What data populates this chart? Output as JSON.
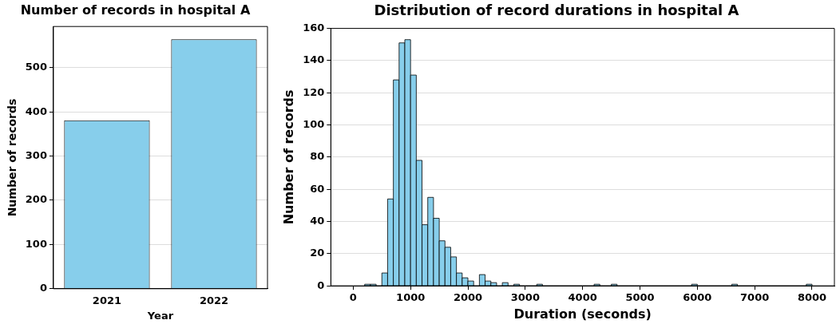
{
  "chart_data": [
    {
      "type": "bar",
      "title": "Number of records in hospital A",
      "xlabel": "Year",
      "ylabel": "Number of records",
      "categories": [
        "2021",
        "2022"
      ],
      "values": [
        381,
        564
      ],
      "color": "#87ceeb",
      "ylim": [
        0,
        593
      ],
      "yticks": [
        0,
        100,
        200,
        300,
        400,
        500
      ],
      "grid": "y",
      "legend": false
    },
    {
      "type": "histogram",
      "title": "Distribution of record durations in hospital A",
      "xlabel": "Duration (seconds)",
      "ylabel": "Number of records",
      "bins": [
        200,
        300,
        400,
        500,
        600,
        700,
        800,
        900,
        1000,
        1100,
        1200,
        1300,
        1400,
        1500,
        1600,
        1700,
        1800,
        1900,
        2000,
        2100,
        2200,
        2300,
        2400,
        2500,
        2600,
        2700,
        2800,
        2900,
        3000,
        3100,
        3200,
        3300,
        3400,
        3500,
        3600,
        3700,
        3800,
        3900,
        4000,
        4100,
        4200,
        4300,
        4400,
        4500,
        4600,
        4700,
        4800,
        4900,
        5000,
        5100,
        5200,
        5300,
        5400,
        5500,
        5600,
        5700,
        5800,
        5900,
        6000,
        6100,
        6200,
        6300,
        6400,
        6500,
        6600,
        6700,
        6800,
        6900,
        7000,
        7100,
        7200,
        7300,
        7400,
        7500,
        7600,
        7700,
        7800,
        7900,
        8000
      ],
      "values": [
        1,
        1,
        0,
        8,
        54,
        128,
        151,
        153,
        131,
        78,
        38,
        55,
        42,
        28,
        24,
        18,
        8,
        5,
        3,
        0,
        7,
        3,
        2,
        0,
        2,
        0,
        1,
        0,
        0,
        0,
        1,
        0,
        0,
        0,
        0,
        0,
        0,
        0,
        0,
        0,
        1,
        0,
        0,
        1,
        0,
        0,
        0,
        0,
        0,
        0,
        0,
        0,
        0,
        0,
        0,
        0,
        0,
        1,
        0,
        0,
        0,
        0,
        0,
        0,
        1,
        0,
        0,
        0,
        0,
        0,
        0,
        0,
        0,
        0,
        0,
        0,
        0,
        1
      ],
      "color": "#87ceeb",
      "xlim": [
        -390,
        8390
      ],
      "xticks": [
        0,
        1000,
        2000,
        3000,
        4000,
        5000,
        6000,
        7000,
        8000
      ],
      "ylim": [
        0,
        160
      ],
      "yticks": [
        0,
        20,
        40,
        60,
        80,
        100,
        120,
        140,
        160
      ],
      "grid": "y",
      "legend": false
    }
  ]
}
